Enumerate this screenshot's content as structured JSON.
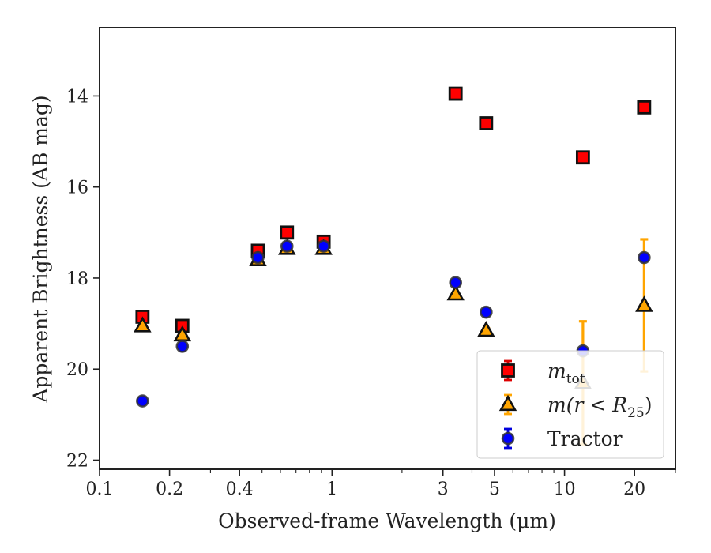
{
  "chart_data": {
    "type": "scatter",
    "xlabel": "Observed-frame Wavelength (μm)",
    "ylabel": "Apparent Brightness (AB mag)",
    "xscale": "log",
    "xlim": [
      0.1,
      30
    ],
    "ylim": [
      22.2,
      12.5
    ],
    "y_inverted": true,
    "xticks": [
      {
        "value": 0.1,
        "label": "0.1"
      },
      {
        "value": 0.2,
        "label": "0.2"
      },
      {
        "value": 0.4,
        "label": "0.4"
      },
      {
        "value": 1,
        "label": "1"
      },
      {
        "value": 3,
        "label": "3"
      },
      {
        "value": 5,
        "label": "5"
      },
      {
        "value": 10,
        "label": "10"
      },
      {
        "value": 20,
        "label": "20"
      }
    ],
    "yticks": [
      {
        "value": 14,
        "label": "14"
      },
      {
        "value": 16,
        "label": "16"
      },
      {
        "value": 18,
        "label": "18"
      },
      {
        "value": 20,
        "label": "20"
      },
      {
        "value": 22,
        "label": "22"
      }
    ],
    "grid": false,
    "legend_position": "lower-right",
    "series": [
      {
        "key": "mtot",
        "name_main": "m",
        "name_sub": "tot",
        "marker": "square",
        "color": "#ff0000",
        "errorbar_color": "#dd0000",
        "points": [
          {
            "x": 0.153,
            "y": 18.85,
            "err": 0.05
          },
          {
            "x": 0.227,
            "y": 19.05,
            "err": 0.05
          },
          {
            "x": 0.48,
            "y": 17.4,
            "err": 0.03
          },
          {
            "x": 0.64,
            "y": 17.0,
            "err": 0.03
          },
          {
            "x": 0.92,
            "y": 17.2,
            "err": 0.03
          },
          {
            "x": 3.4,
            "y": 13.95,
            "err": 0.03
          },
          {
            "x": 4.6,
            "y": 14.6,
            "err": 0.03
          },
          {
            "x": 12.0,
            "y": 15.35,
            "err": 0.03
          },
          {
            "x": 22.0,
            "y": 14.25,
            "err": 0.03
          }
        ]
      },
      {
        "key": "mr25",
        "name_main": "m(r < R",
        "name_sub": "25",
        "name_tail": ")",
        "marker": "triangle",
        "color": "#ffa500",
        "errorbar_color": "#ffa500",
        "points": [
          {
            "x": 0.153,
            "y": 19.05,
            "err": 0.05
          },
          {
            "x": 0.227,
            "y": 19.25,
            "err": 0.05
          },
          {
            "x": 0.48,
            "y": 17.6,
            "err": 0.03
          },
          {
            "x": 0.64,
            "y": 17.35,
            "err": 0.03
          },
          {
            "x": 0.92,
            "y": 17.35,
            "err": 0.03
          },
          {
            "x": 3.4,
            "y": 18.35,
            "err": 0.04
          },
          {
            "x": 4.6,
            "y": 19.15,
            "err": 0.05
          },
          {
            "x": 12.0,
            "y": 20.3,
            "err": 1.35
          },
          {
            "x": 22.0,
            "y": 18.6,
            "err": 1.45
          }
        ]
      },
      {
        "key": "tractor",
        "name_main": "Tractor",
        "marker": "circle",
        "color": "#0000ff",
        "errorbar_color": "#0000dd",
        "points": [
          {
            "x": 0.153,
            "y": 20.7,
            "err": 0.05
          },
          {
            "x": 0.227,
            "y": 19.5,
            "err": 0.05
          },
          {
            "x": 0.48,
            "y": 17.55,
            "err": 0.03
          },
          {
            "x": 0.64,
            "y": 17.3,
            "err": 0.03
          },
          {
            "x": 0.92,
            "y": 17.3,
            "err": 0.03
          },
          {
            "x": 3.4,
            "y": 18.1,
            "err": 0.03
          },
          {
            "x": 4.6,
            "y": 18.75,
            "err": 0.04
          },
          {
            "x": 12.0,
            "y": 19.6,
            "err": 0.05
          },
          {
            "x": 22.0,
            "y": 17.55,
            "err": 0.08
          }
        ]
      }
    ]
  }
}
